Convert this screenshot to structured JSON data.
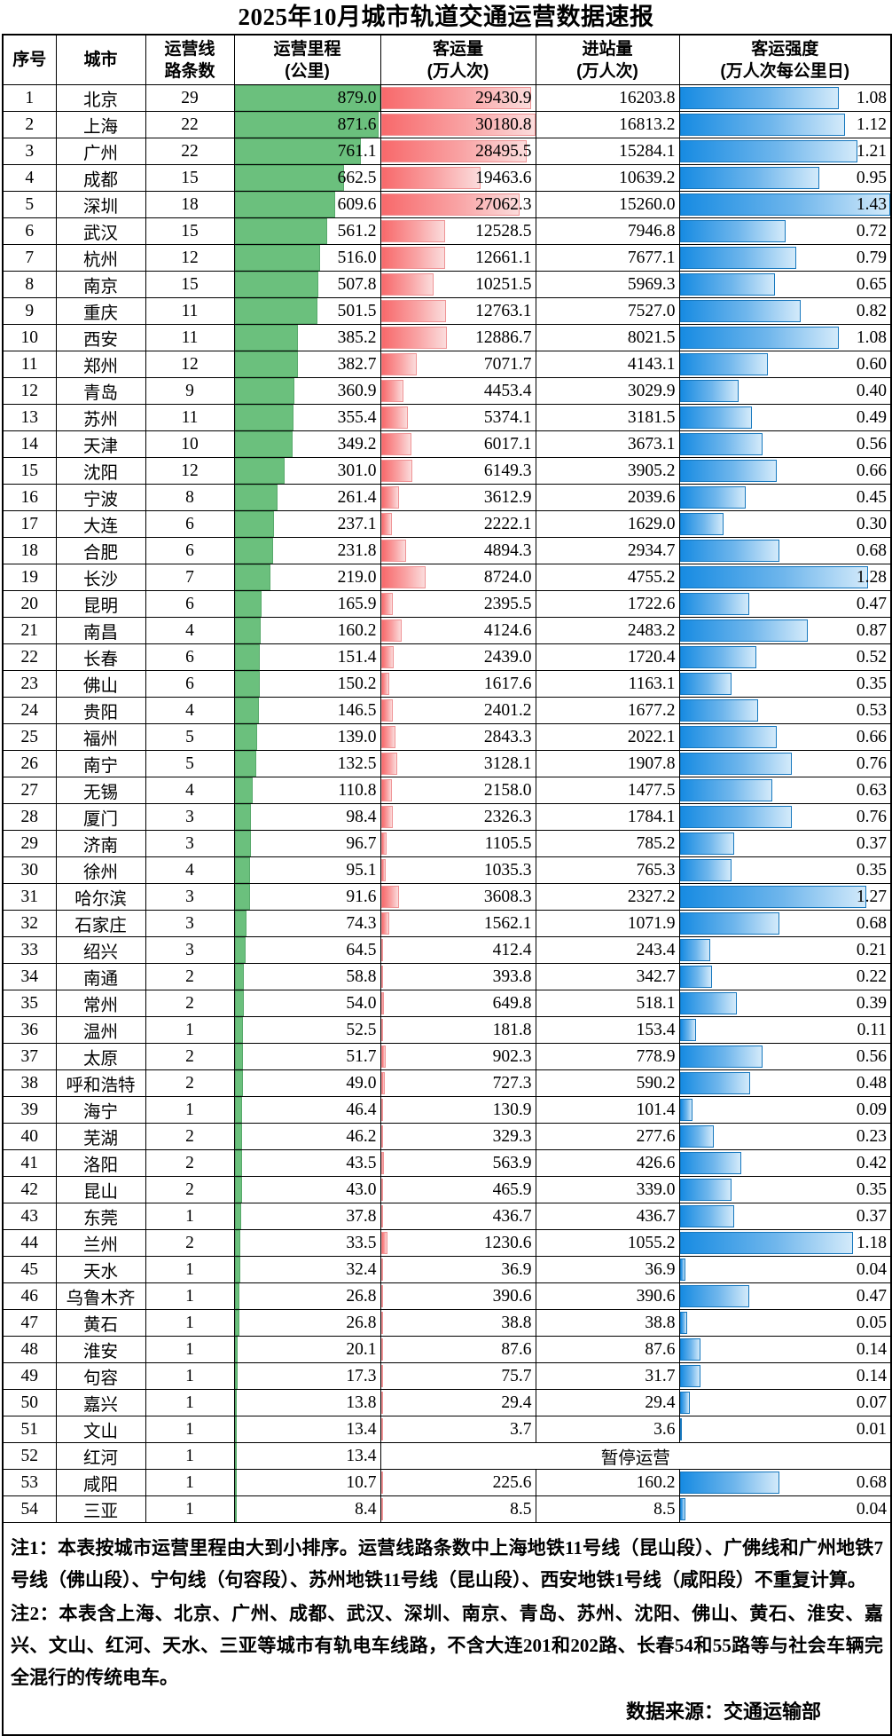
{
  "title": "2025年10月城市轨道交通运营数据速报",
  "suspended_label": "暂停运营",
  "colors": {
    "mileage_bar": "#6BC07D",
    "passenger_bar_start": "#F8696B",
    "passenger_bar_end": "#FBDCDC",
    "intensity_bar_start": "#178BE2",
    "intensity_bar_end": "#D3EAFA",
    "grid": "#000000"
  },
  "notes": {
    "note1": "注1：本表按城市运营里程由大到小排序。运营线路条数中上海地铁11号线（昆山段）、广佛线和广州地铁7号线（佛山段）、宁句线（句容段）、苏州地铁11号线（昆山段）、西安地铁1号线（咸阳段）不重复计算。",
    "note2": "注2：本表含上海、北京、广州、成都、武汉、深圳、南京、青岛、苏州、沈阳、佛山、黄石、淮安、嘉兴、文山、红河、天水、三亚等城市有轨电车线路，不含大连201和202路、长春54和55路等与社会车辆完全混行的传统电车。",
    "source": "数据来源：交通运输部"
  },
  "chart_data": {
    "type": "table",
    "title": "2025年10月城市轨道交通运营数据速报",
    "columns": [
      {
        "label": "序号",
        "sub": ""
      },
      {
        "label": "城市",
        "sub": ""
      },
      {
        "label": "运营线",
        "sub": "路条数"
      },
      {
        "label": "运营里程",
        "sub": "(公里)"
      },
      {
        "label": "客运量",
        "sub": "(万人次)"
      },
      {
        "label": "进站量",
        "sub": "(万人次)"
      },
      {
        "label": "客运强度",
        "sub": "(万人次每公里日)"
      }
    ],
    "bar_scale_max": {
      "mileage": 879.0,
      "passengers": 30180.8,
      "intensity": 1.43
    },
    "rows": [
      {
        "num": 1,
        "city": "北京",
        "lines": 29,
        "mileage": 879.0,
        "passengers": 29430.9,
        "entries": 16203.8,
        "intensity": 1.08
      },
      {
        "num": 2,
        "city": "上海",
        "lines": 22,
        "mileage": 871.6,
        "passengers": 30180.8,
        "entries": 16813.2,
        "intensity": 1.12
      },
      {
        "num": 3,
        "city": "广州",
        "lines": 22,
        "mileage": 761.1,
        "passengers": 28495.5,
        "entries": 15284.1,
        "intensity": 1.21
      },
      {
        "num": 4,
        "city": "成都",
        "lines": 15,
        "mileage": 662.5,
        "passengers": 19463.6,
        "entries": 10639.2,
        "intensity": 0.95
      },
      {
        "num": 5,
        "city": "深圳",
        "lines": 18,
        "mileage": 609.6,
        "passengers": 27062.3,
        "entries": 15260.0,
        "intensity": 1.43
      },
      {
        "num": 6,
        "city": "武汉",
        "lines": 15,
        "mileage": 561.2,
        "passengers": 12528.5,
        "entries": 7946.8,
        "intensity": 0.72
      },
      {
        "num": 7,
        "city": "杭州",
        "lines": 12,
        "mileage": 516.0,
        "passengers": 12661.1,
        "entries": 7677.1,
        "intensity": 0.79
      },
      {
        "num": 8,
        "city": "南京",
        "lines": 15,
        "mileage": 507.8,
        "passengers": 10251.5,
        "entries": 5969.3,
        "intensity": 0.65
      },
      {
        "num": 9,
        "city": "重庆",
        "lines": 11,
        "mileage": 501.5,
        "passengers": 12763.1,
        "entries": 7527.0,
        "intensity": 0.82
      },
      {
        "num": 10,
        "city": "西安",
        "lines": 11,
        "mileage": 385.2,
        "passengers": 12886.7,
        "entries": 8021.5,
        "intensity": 1.08
      },
      {
        "num": 11,
        "city": "郑州",
        "lines": 12,
        "mileage": 382.7,
        "passengers": 7071.7,
        "entries": 4143.1,
        "intensity": 0.6
      },
      {
        "num": 12,
        "city": "青岛",
        "lines": 9,
        "mileage": 360.9,
        "passengers": 4453.4,
        "entries": 3029.9,
        "intensity": 0.4
      },
      {
        "num": 13,
        "city": "苏州",
        "lines": 11,
        "mileage": 355.4,
        "passengers": 5374.1,
        "entries": 3181.5,
        "intensity": 0.49
      },
      {
        "num": 14,
        "city": "天津",
        "lines": 10,
        "mileage": 349.2,
        "passengers": 6017.1,
        "entries": 3673.1,
        "intensity": 0.56
      },
      {
        "num": 15,
        "city": "沈阳",
        "lines": 12,
        "mileage": 301.0,
        "passengers": 6149.3,
        "entries": 3905.2,
        "intensity": 0.66
      },
      {
        "num": 16,
        "city": "宁波",
        "lines": 8,
        "mileage": 261.4,
        "passengers": 3612.9,
        "entries": 2039.6,
        "intensity": 0.45
      },
      {
        "num": 17,
        "city": "大连",
        "lines": 6,
        "mileage": 237.1,
        "passengers": 2222.1,
        "entries": 1629.0,
        "intensity": 0.3
      },
      {
        "num": 18,
        "city": "合肥",
        "lines": 6,
        "mileage": 231.8,
        "passengers": 4894.3,
        "entries": 2934.7,
        "intensity": 0.68
      },
      {
        "num": 19,
        "city": "长沙",
        "lines": 7,
        "mileage": 219.0,
        "passengers": 8724.0,
        "entries": 4755.2,
        "intensity": 1.28
      },
      {
        "num": 20,
        "city": "昆明",
        "lines": 6,
        "mileage": 165.9,
        "passengers": 2395.5,
        "entries": 1722.6,
        "intensity": 0.47
      },
      {
        "num": 21,
        "city": "南昌",
        "lines": 4,
        "mileage": 160.2,
        "passengers": 4124.6,
        "entries": 2483.2,
        "intensity": 0.87
      },
      {
        "num": 22,
        "city": "长春",
        "lines": 6,
        "mileage": 151.4,
        "passengers": 2439.0,
        "entries": 1720.4,
        "intensity": 0.52
      },
      {
        "num": 23,
        "city": "佛山",
        "lines": 6,
        "mileage": 150.2,
        "passengers": 1617.6,
        "entries": 1163.1,
        "intensity": 0.35
      },
      {
        "num": 24,
        "city": "贵阳",
        "lines": 4,
        "mileage": 146.5,
        "passengers": 2401.2,
        "entries": 1677.2,
        "intensity": 0.53
      },
      {
        "num": 25,
        "city": "福州",
        "lines": 5,
        "mileage": 139.0,
        "passengers": 2843.3,
        "entries": 2022.1,
        "intensity": 0.66
      },
      {
        "num": 26,
        "city": "南宁",
        "lines": 5,
        "mileage": 132.5,
        "passengers": 3128.1,
        "entries": 1907.8,
        "intensity": 0.76
      },
      {
        "num": 27,
        "city": "无锡",
        "lines": 4,
        "mileage": 110.8,
        "passengers": 2158.0,
        "entries": 1477.5,
        "intensity": 0.63
      },
      {
        "num": 28,
        "city": "厦门",
        "lines": 3,
        "mileage": 98.4,
        "passengers": 2326.3,
        "entries": 1784.1,
        "intensity": 0.76
      },
      {
        "num": 29,
        "city": "济南",
        "lines": 3,
        "mileage": 96.7,
        "passengers": 1105.5,
        "entries": 785.2,
        "intensity": 0.37
      },
      {
        "num": 30,
        "city": "徐州",
        "lines": 4,
        "mileage": 95.1,
        "passengers": 1035.3,
        "entries": 765.3,
        "intensity": 0.35
      },
      {
        "num": 31,
        "city": "哈尔滨",
        "lines": 3,
        "mileage": 91.6,
        "passengers": 3608.3,
        "entries": 2327.2,
        "intensity": 1.27
      },
      {
        "num": 32,
        "city": "石家庄",
        "lines": 3,
        "mileage": 74.3,
        "passengers": 1562.1,
        "entries": 1071.9,
        "intensity": 0.68
      },
      {
        "num": 33,
        "city": "绍兴",
        "lines": 3,
        "mileage": 64.5,
        "passengers": 412.4,
        "entries": 243.4,
        "intensity": 0.21
      },
      {
        "num": 34,
        "city": "南通",
        "lines": 2,
        "mileage": 58.8,
        "passengers": 393.8,
        "entries": 342.7,
        "intensity": 0.22
      },
      {
        "num": 35,
        "city": "常州",
        "lines": 2,
        "mileage": 54.0,
        "passengers": 649.8,
        "entries": 518.1,
        "intensity": 0.39
      },
      {
        "num": 36,
        "city": "温州",
        "lines": 1,
        "mileage": 52.5,
        "passengers": 181.8,
        "entries": 153.4,
        "intensity": 0.11
      },
      {
        "num": 37,
        "city": "太原",
        "lines": 2,
        "mileage": 51.7,
        "passengers": 902.3,
        "entries": 778.9,
        "intensity": 0.56
      },
      {
        "num": 38,
        "city": "呼和浩特",
        "lines": 2,
        "mileage": 49.0,
        "passengers": 727.3,
        "entries": 590.2,
        "intensity": 0.48
      },
      {
        "num": 39,
        "city": "海宁",
        "lines": 1,
        "mileage": 46.4,
        "passengers": 130.9,
        "entries": 101.4,
        "intensity": 0.09
      },
      {
        "num": 40,
        "city": "芜湖",
        "lines": 2,
        "mileage": 46.2,
        "passengers": 329.3,
        "entries": 277.6,
        "intensity": 0.23
      },
      {
        "num": 41,
        "city": "洛阳",
        "lines": 2,
        "mileage": 43.5,
        "passengers": 563.9,
        "entries": 426.6,
        "intensity": 0.42
      },
      {
        "num": 42,
        "city": "昆山",
        "lines": 2,
        "mileage": 43.0,
        "passengers": 465.9,
        "entries": 339.0,
        "intensity": 0.35
      },
      {
        "num": 43,
        "city": "东莞",
        "lines": 1,
        "mileage": 37.8,
        "passengers": 436.7,
        "entries": 436.7,
        "intensity": 0.37
      },
      {
        "num": 44,
        "city": "兰州",
        "lines": 2,
        "mileage": 33.5,
        "passengers": 1230.6,
        "entries": 1055.2,
        "intensity": 1.18
      },
      {
        "num": 45,
        "city": "天水",
        "lines": 1,
        "mileage": 32.4,
        "passengers": 36.9,
        "entries": 36.9,
        "intensity": 0.04
      },
      {
        "num": 46,
        "city": "乌鲁木齐",
        "lines": 1,
        "mileage": 26.8,
        "passengers": 390.6,
        "entries": 390.6,
        "intensity": 0.47
      },
      {
        "num": 47,
        "city": "黄石",
        "lines": 1,
        "mileage": 26.8,
        "passengers": 38.8,
        "entries": 38.8,
        "intensity": 0.05
      },
      {
        "num": 48,
        "city": "淮安",
        "lines": 1,
        "mileage": 20.1,
        "passengers": 87.6,
        "entries": 87.6,
        "intensity": 0.14
      },
      {
        "num": 49,
        "city": "句容",
        "lines": 1,
        "mileage": 17.3,
        "passengers": 75.7,
        "entries": 31.7,
        "intensity": 0.14
      },
      {
        "num": 50,
        "city": "嘉兴",
        "lines": 1,
        "mileage": 13.8,
        "passengers": 29.4,
        "entries": 29.4,
        "intensity": 0.07
      },
      {
        "num": 51,
        "city": "文山",
        "lines": 1,
        "mileage": 13.4,
        "passengers": 3.7,
        "entries": 3.6,
        "intensity": 0.01
      },
      {
        "num": 52,
        "city": "红河",
        "lines": 1,
        "mileage": 13.4,
        "suspended": true
      },
      {
        "num": 53,
        "city": "咸阳",
        "lines": 1,
        "mileage": 10.7,
        "passengers": 225.6,
        "entries": 160.2,
        "intensity": 0.68
      },
      {
        "num": 54,
        "city": "三亚",
        "lines": 1,
        "mileage": 8.4,
        "passengers": 8.5,
        "entries": 8.5,
        "intensity": 0.04
      }
    ]
  }
}
